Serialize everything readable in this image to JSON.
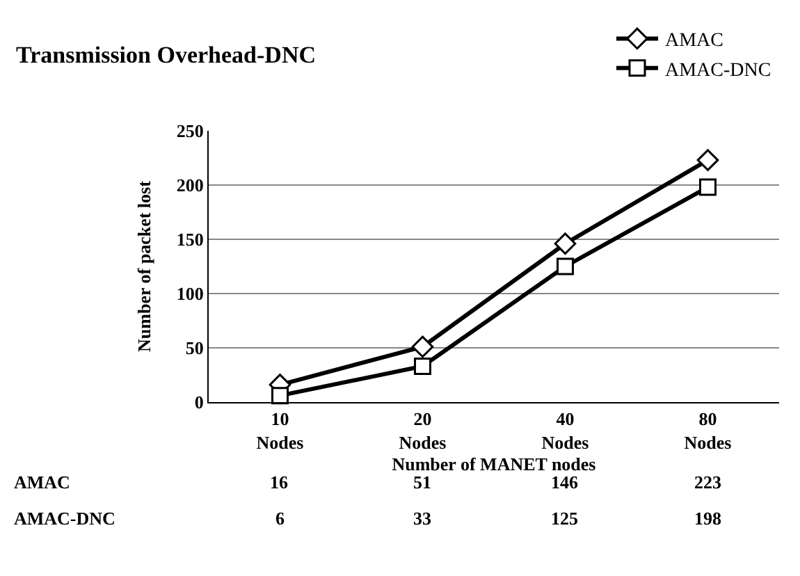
{
  "chart_data": {
    "type": "line",
    "title": "Transmission Overhead-DNC",
    "xlabel": "Number of MANET nodes",
    "ylabel": "Number of packet lost",
    "categories": [
      "10 Nodes",
      "20 Nodes",
      "40 Nodes",
      "80 Nodes"
    ],
    "series": [
      {
        "name": "AMAC",
        "color": "#000000",
        "marker": "diamond",
        "values": [
          16,
          51,
          146,
          223
        ]
      },
      {
        "name": "AMAC-DNC",
        "color": "#000000",
        "marker": "square",
        "values": [
          6,
          33,
          125,
          198
        ]
      }
    ],
    "ylim": [
      0,
      250
    ],
    "yticks": [
      0,
      50,
      100,
      150,
      200,
      250
    ],
    "grid": "y",
    "legend": "top right",
    "line_style": "solid",
    "data_labels": true
  }
}
